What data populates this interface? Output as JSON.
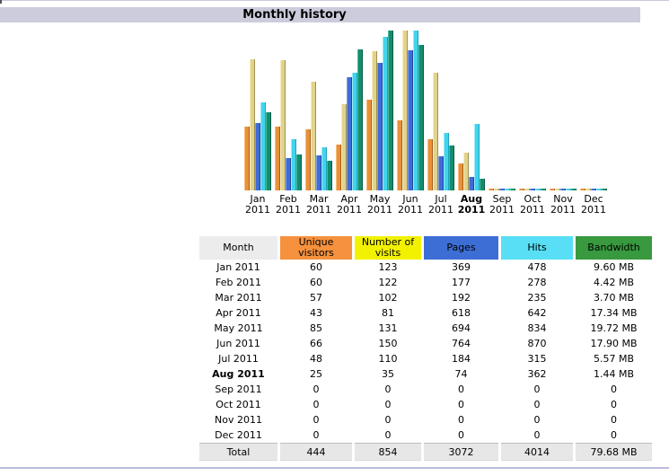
{
  "section": {
    "title": "Monthly history"
  },
  "chart_data": {
    "type": "bar",
    "title": "Monthly history",
    "categories": [
      "Jan 2011",
      "Feb 2011",
      "Mar 2011",
      "Apr 2011",
      "May 2011",
      "Jun 2011",
      "Jul 2011",
      "Aug 2011",
      "Sep 2011",
      "Oct 2011",
      "Nov 2011",
      "Dec 2011"
    ],
    "highlighted_category": "Aug 2011",
    "grid": false,
    "legend_position": "table-below",
    "scaling_note": "each scale group is normalized to the max of that group",
    "series": [
      {
        "name": "Unique visitors",
        "scale_group": "visits",
        "color": "#E8913A",
        "color_light": "#F8BE7A",
        "color_dark": "#A65E1C",
        "values": [
          60,
          60,
          57,
          43,
          85,
          66,
          48,
          25,
          0,
          0,
          0,
          0
        ]
      },
      {
        "name": "Number of visits",
        "scale_group": "visits",
        "color": "#E2D38B",
        "color_light": "#F5EDC0",
        "color_dark": "#9E9152",
        "values": [
          123,
          122,
          102,
          81,
          131,
          150,
          110,
          35,
          0,
          0,
          0,
          0
        ]
      },
      {
        "name": "Pages",
        "scale_group": "pageshits",
        "color": "#3E6CD8",
        "color_light": "#82A0E9",
        "color_dark": "#27449F",
        "values": [
          369,
          177,
          192,
          618,
          694,
          764,
          184,
          74,
          0,
          0,
          0,
          0
        ]
      },
      {
        "name": "Hits",
        "scale_group": "pageshits",
        "color": "#41D4EC",
        "color_light": "#9AECF9",
        "color_dark": "#1FA2BE",
        "values": [
          478,
          278,
          235,
          642,
          834,
          870,
          315,
          362,
          0,
          0,
          0,
          0
        ]
      },
      {
        "name": "Bandwidth (MB)",
        "scale_group": "bandwidth",
        "color": "#118E6E",
        "color_light": "#4FB797",
        "color_dark": "#0A5A46",
        "values": [
          9.6,
          4.42,
          3.7,
          17.34,
          19.72,
          17.9,
          5.57,
          1.44,
          0,
          0,
          0,
          0
        ]
      }
    ]
  },
  "table": {
    "columns": [
      {
        "label": "Month",
        "bg": "#ECECEC"
      },
      {
        "label": "Unique visitors",
        "bg": "#F6913D"
      },
      {
        "label": "Number of visits",
        "bg": "#F2F200"
      },
      {
        "label": "Pages",
        "bg": "#3D6ED5"
      },
      {
        "label": "Hits",
        "bg": "#58DFF5"
      },
      {
        "label": "Bandwidth",
        "bg": "#38993F"
      }
    ],
    "rows": [
      {
        "month": "Jan 2011",
        "bold": false,
        "values": [
          "60",
          "123",
          "369",
          "478",
          "9.60 MB"
        ]
      },
      {
        "month": "Feb 2011",
        "bold": false,
        "values": [
          "60",
          "122",
          "177",
          "278",
          "4.42 MB"
        ]
      },
      {
        "month": "Mar 2011",
        "bold": false,
        "values": [
          "57",
          "102",
          "192",
          "235",
          "3.70 MB"
        ]
      },
      {
        "month": "Apr 2011",
        "bold": false,
        "values": [
          "43",
          "81",
          "618",
          "642",
          "17.34 MB"
        ]
      },
      {
        "month": "May 2011",
        "bold": false,
        "values": [
          "85",
          "131",
          "694",
          "834",
          "19.72 MB"
        ]
      },
      {
        "month": "Jun 2011",
        "bold": false,
        "values": [
          "66",
          "150",
          "764",
          "870",
          "17.90 MB"
        ]
      },
      {
        "month": "Jul 2011",
        "bold": false,
        "values": [
          "48",
          "110",
          "184",
          "315",
          "5.57 MB"
        ]
      },
      {
        "month": "Aug 2011",
        "bold": true,
        "values": [
          "25",
          "35",
          "74",
          "362",
          "1.44 MB"
        ]
      },
      {
        "month": "Sep 2011",
        "bold": false,
        "values": [
          "0",
          "0",
          "0",
          "0",
          "0"
        ]
      },
      {
        "month": "Oct 2011",
        "bold": false,
        "values": [
          "0",
          "0",
          "0",
          "0",
          "0"
        ]
      },
      {
        "month": "Nov 2011",
        "bold": false,
        "values": [
          "0",
          "0",
          "0",
          "0",
          "0"
        ]
      },
      {
        "month": "Dec 2011",
        "bold": false,
        "values": [
          "0",
          "0",
          "0",
          "0",
          "0"
        ]
      }
    ],
    "total": {
      "label": "Total",
      "values": [
        "444",
        "854",
        "3072",
        "4014",
        "79.68 MB"
      ]
    }
  }
}
